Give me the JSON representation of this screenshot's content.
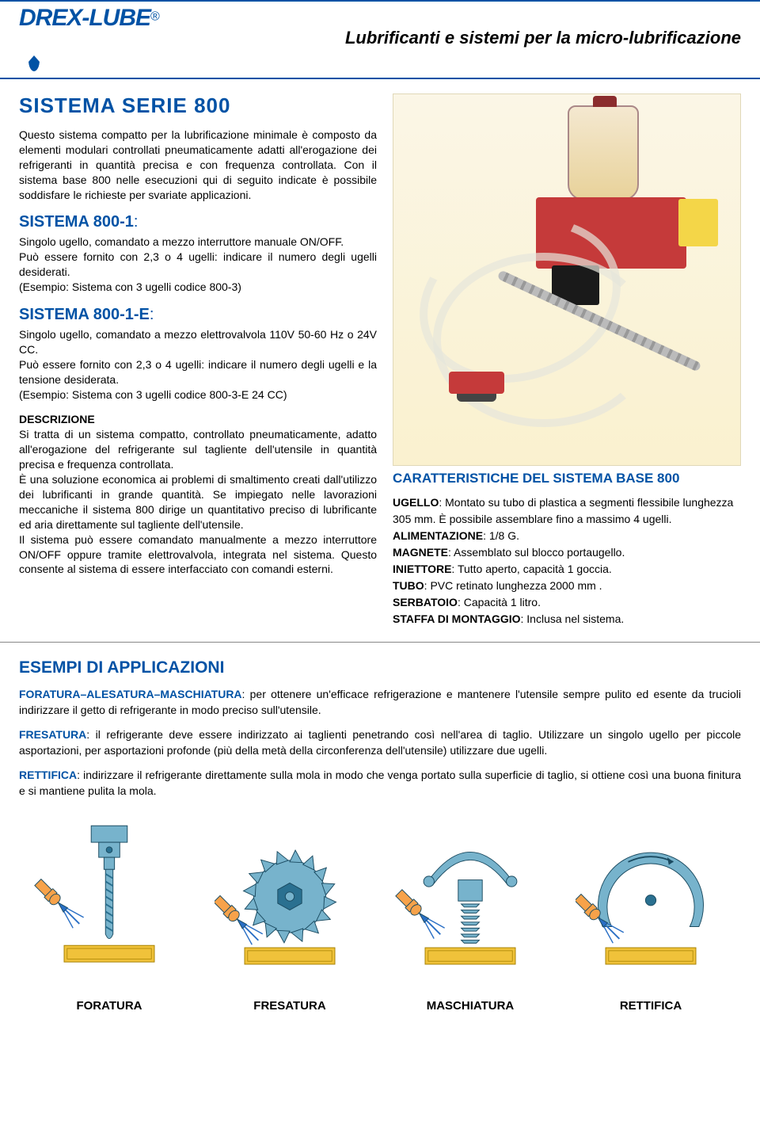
{
  "header": {
    "brand": "DREX-LUBE",
    "reg": "®",
    "tagline": "Lubrificanti e sistemi per la micro-lubrificazione"
  },
  "intro": {
    "title": "SISTEMA SERIE 800",
    "text": "Questo sistema compatto per la lubrificazione minimale è composto da elementi modulari controllati pneumaticamente adatti all'erogazione dei refrigeranti in quantità precisa e con frequenza controllata. Con il sistema base 800 nelle esecuzioni qui di seguito indicate è possibile soddisfare le richieste per svariate applicazioni."
  },
  "s800_1": {
    "heading": "SISTEMA 800-1",
    "colon": ":",
    "body": "Singolo ugello, comandato a mezzo interruttore manuale ON/OFF.\nPuò essere fornito con 2,3 o 4 ugelli: indicare il numero degli ugelli desiderati.\n(Esempio: Sistema con 3 ugelli codice 800-3)"
  },
  "s800_1e": {
    "heading": "SISTEMA 800-1-E",
    "colon": ":",
    "body": "Singolo ugello, comandato a mezzo elettrovalvola 110V 50-60 Hz o 24V CC.\nPuò essere fornito con 2,3 o 4 ugelli: indicare il numero degli ugelli e la tensione desiderata.\n(Esempio: Sistema con 3 ugelli codice 800-3-E 24 CC)"
  },
  "desc": {
    "heading": "DESCRIZIONE",
    "body": "Si tratta di un sistema compatto, controllato pneumaticamente, adatto all'erogazione del refrigerante sul tagliente dell'utensile in quantità precisa e frequenza controllata.\nÈ una soluzione economica ai problemi di smaltimento creati dall'utilizzo dei lubrificanti in grande quantità. Se impiegato nelle lavorazioni meccaniche il sistema 800 dirige un quantitativo preciso di lubrificante ed aria direttamente sul tagliente dell'utensile.\nIl sistema può essere comandato manualmente a mezzo interruttore ON/OFF oppure tramite elettrovalvola, integrata nel sistema. Questo consente al sistema di essere interfacciato con comandi esterni."
  },
  "characteristics": {
    "title": "CARATTERISTICHE DEL SISTEMA BASE 800",
    "rows": [
      {
        "label": "UGELLO",
        "value": ": Montato su tubo di plastica a segmenti flessibile lunghezza 305 mm. È possibile assemblare fino a massimo 4 ugelli."
      },
      {
        "label": "ALIMENTAZIONE",
        "value": ": 1/8 G."
      },
      {
        "label": "MAGNETE",
        "value": ": Assemblato sul blocco portaugello."
      },
      {
        "label": "INIETTORE",
        "value": ": Tutto aperto, capacità 1 goccia."
      },
      {
        "label": "TUBO",
        "value": ": PVC retinato lunghezza 2000 mm ."
      },
      {
        "label": "SERBATOIO",
        "value": ": Capacità 1 litro."
      },
      {
        "label": "STAFFA DI MONTAGGIO",
        "value": ": Inclusa nel sistema."
      }
    ]
  },
  "examples": {
    "title": "ESEMPI DI APPLICAZIONI",
    "items": [
      {
        "lead": "FORATURA–ALESATURA–MASCHIATURA",
        "text": ": per ottenere un'efficace refrigerazione e mantenere l'utensile sempre pulito ed esente da trucioli indirizzare il getto di refrigerante in modo preciso sull'utensile."
      },
      {
        "lead": "FRESATURA",
        "text": ": il refrigerante deve essere indirizzato ai taglienti penetrando così nell'area di taglio. Utilizzare un singolo ugello per piccole asportazioni, per asportazioni profonde (più della metà della circonferenza dell'utensile) utilizzare due ugelli."
      },
      {
        "lead": "RETTIFICA",
        "text": ": indirizzare il refrigerante direttamente sulla mola in modo che venga portato sulla superficie di taglio, si ottiene così una buona finitura e si mantiene pulita la mola."
      }
    ]
  },
  "diagrams": {
    "colors": {
      "metal": "#77b3cc",
      "metal_dark": "#2a7090",
      "nozzle": "#f7a24a",
      "nozzle_tip": "#2a6fc5",
      "work": "#f0c23a",
      "work_edge": "#a58000",
      "outline": "#1a4a60"
    },
    "labels": [
      "FORATURA",
      "FRESATURA",
      "MASCHIATURA",
      "RETTIFICA"
    ]
  }
}
